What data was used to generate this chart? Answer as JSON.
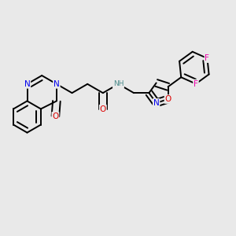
{
  "background_color": "#e9e9e9",
  "atoms": {
    "colors": {
      "C": "#000000",
      "N": "#0000ee",
      "O": "#dd0000",
      "F": "#ee00aa",
      "H": "#4a8a8a"
    }
  },
  "bond_color": "#000000",
  "bond_width": 1.4,
  "figsize": [
    3.0,
    3.0
  ],
  "dpi": 100,
  "xlim": [
    0.0,
    1.0
  ],
  "ylim": [
    0.18,
    0.82
  ]
}
